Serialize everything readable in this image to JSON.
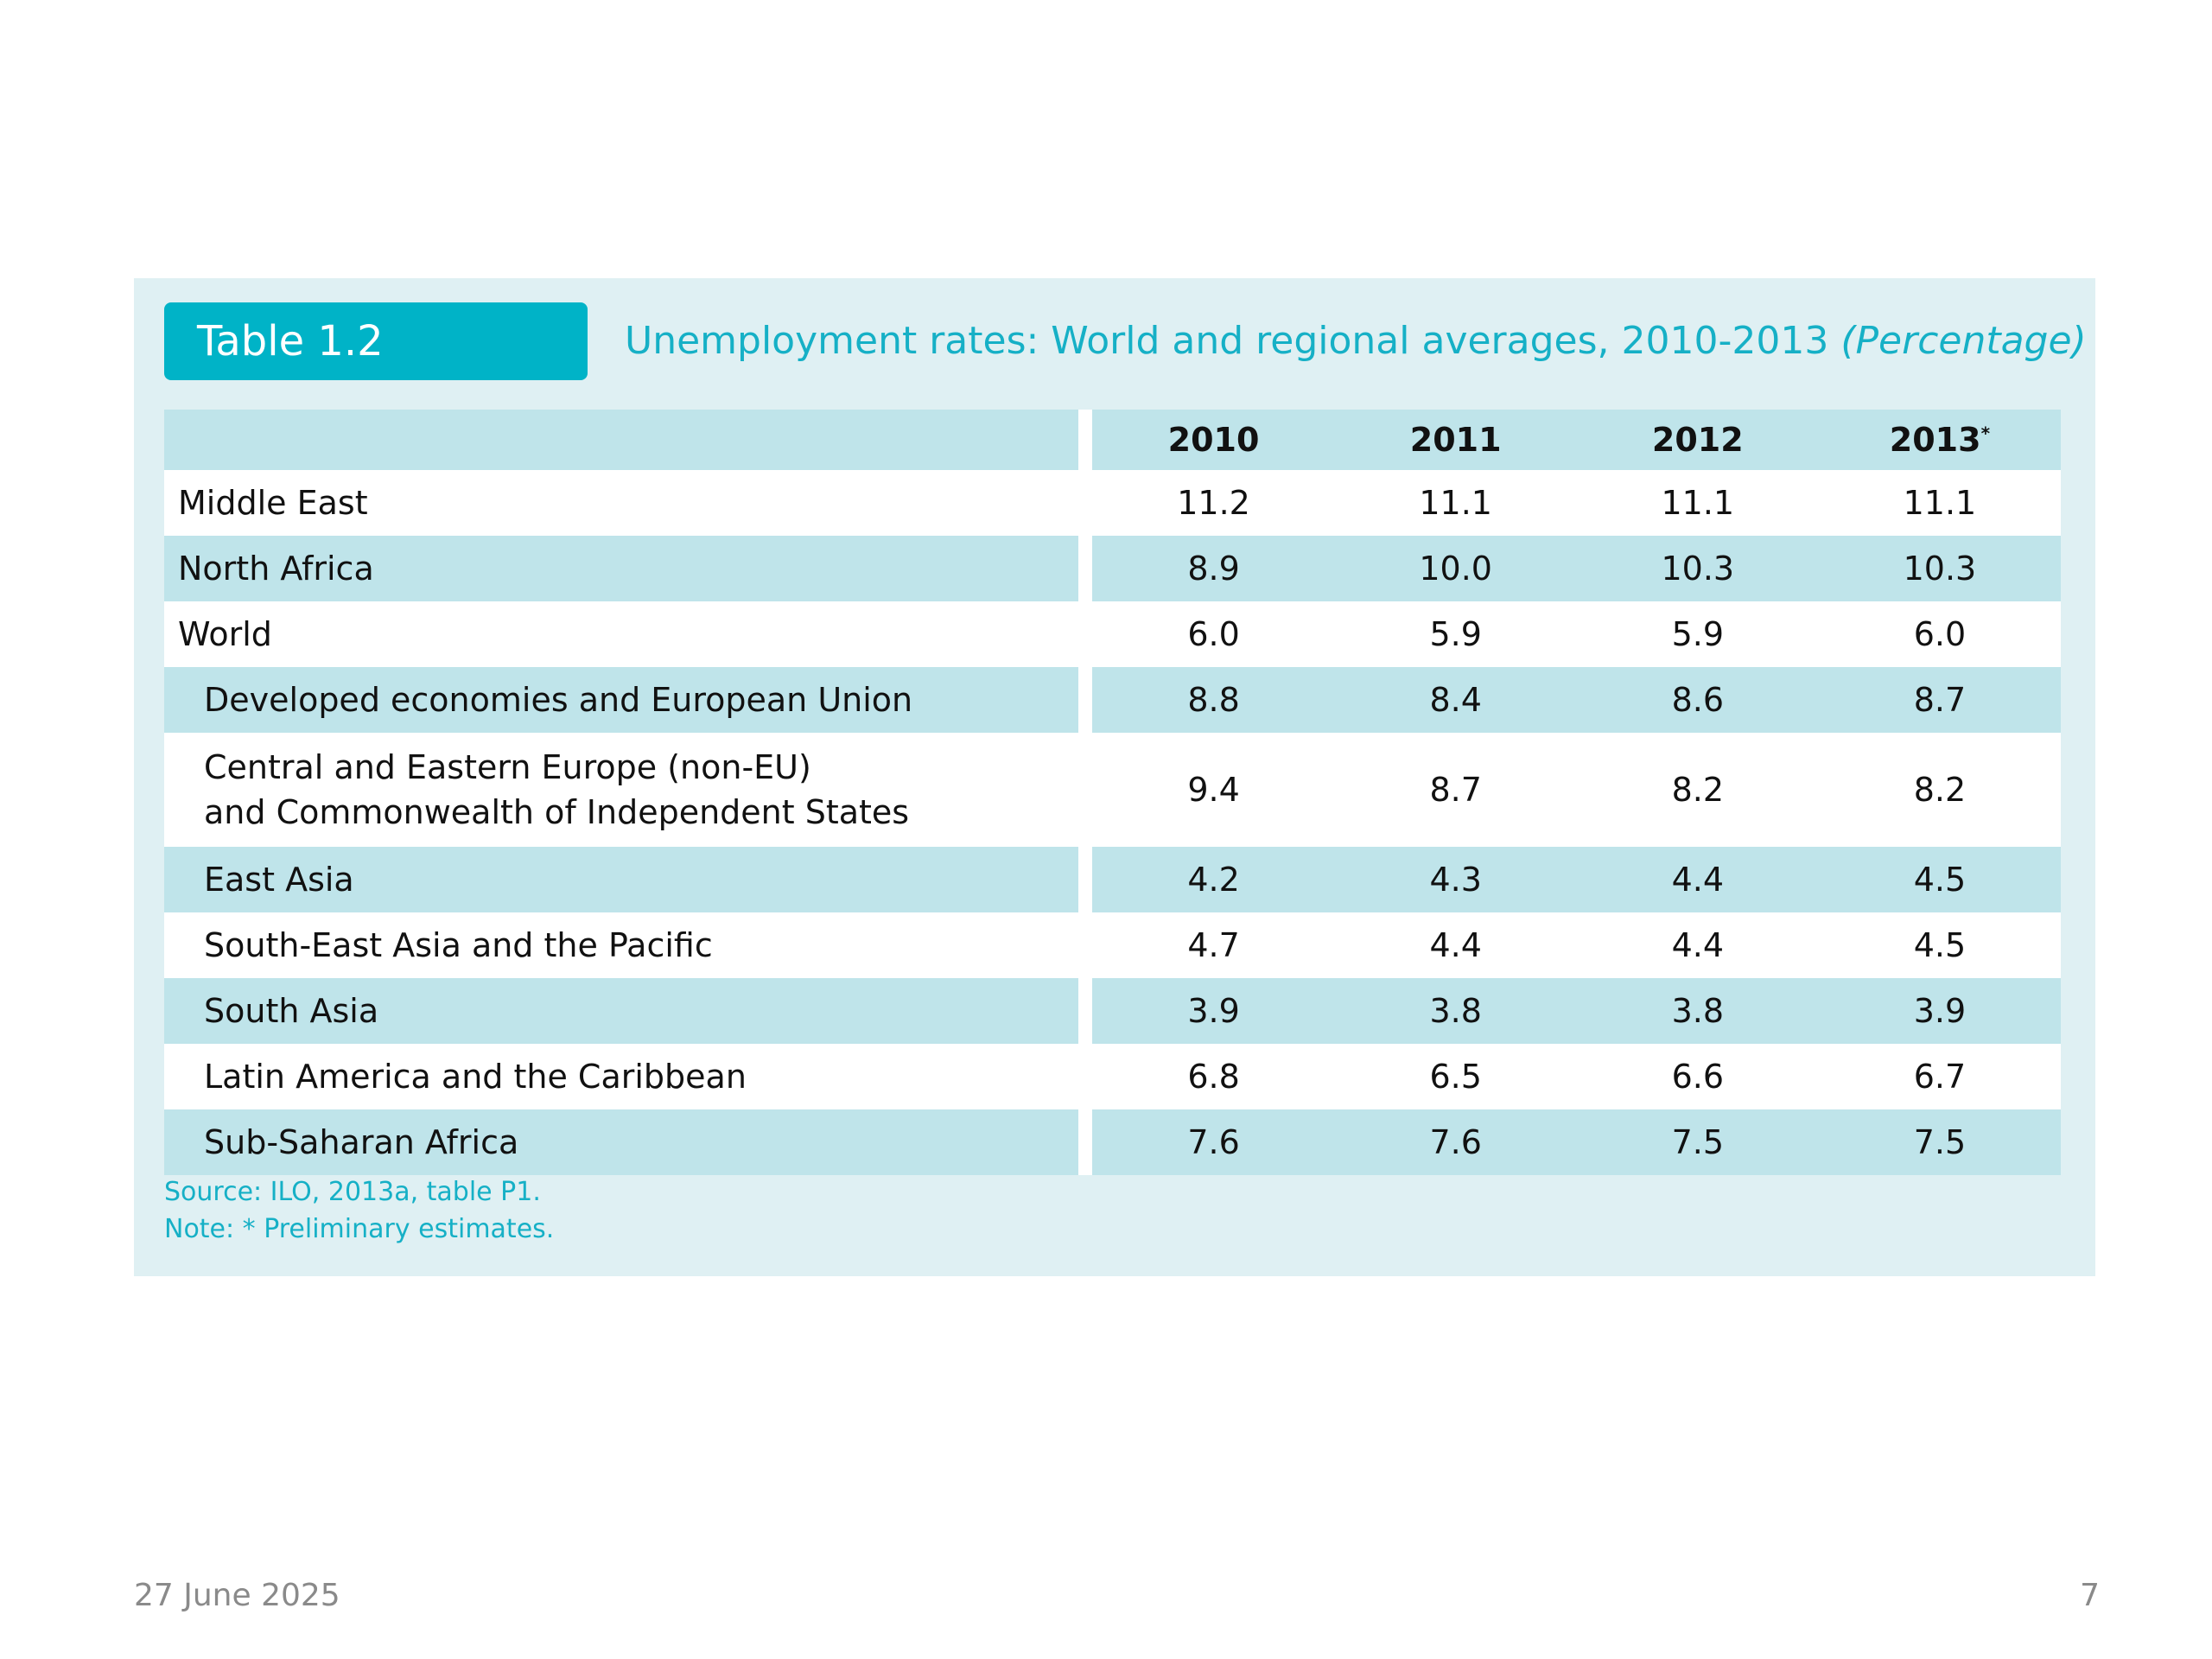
{
  "table": {
    "badge": "Table 1.2",
    "title": "Unemployment rates: World and regional averages, 2010-2013",
    "title_unit": "(Percentage)",
    "columns": [
      "2010",
      "2011",
      "2012",
      "2013"
    ],
    "last_column_marker": "*",
    "source": "Source: ILO, 2013a, table P1.",
    "note": "Note: * Preliminary estimates."
  },
  "chart_data": {
    "type": "table",
    "title": "Unemployment rates: World and regional averages, 2010-2013 (Percentage)",
    "columns": [
      "2010",
      "2011",
      "2012",
      "2013*"
    ],
    "rows": [
      {
        "label": "Middle East",
        "values": [
          "11.2",
          "11.1",
          "11.1",
          "11.1"
        ]
      },
      {
        "label": "North Africa",
        "values": [
          "8.9",
          "10.0",
          "10.3",
          "10.3"
        ]
      },
      {
        "label": "World",
        "values": [
          "6.0",
          "5.9",
          "5.9",
          "6.0"
        ]
      },
      {
        "label": "Developed economies and European Union",
        "values": [
          "8.8",
          "8.4",
          "8.6",
          "8.7"
        ]
      },
      {
        "label_lines": [
          "Central and Eastern Europe (non-EU)",
          "and Commonwealth of Independent States"
        ],
        "values": [
          "9.4",
          "8.7",
          "8.2",
          "8.2"
        ]
      },
      {
        "label": "East Asia",
        "values": [
          "4.2",
          "4.3",
          "4.4",
          "4.5"
        ]
      },
      {
        "label": "South-East Asia and the Pacific",
        "values": [
          "4.7",
          "4.4",
          "4.4",
          "4.5"
        ]
      },
      {
        "label": "South Asia",
        "values": [
          "3.9",
          "3.8",
          "3.8",
          "3.9"
        ]
      },
      {
        "label": "Latin America and the Caribbean",
        "values": [
          "6.8",
          "6.5",
          "6.6",
          "6.7"
        ]
      },
      {
        "label": "Sub-Saharan Africa",
        "values": [
          "7.6",
          "7.6",
          "7.5",
          "7.5"
        ]
      }
    ]
  },
  "footer": {
    "date": "27 June 2025",
    "page": "7"
  },
  "colors": {
    "accent": "#00b3c7",
    "title_text": "#16b0c6",
    "row_shade": "#bfe4ea",
    "panel_bg": "#dff0f3"
  }
}
